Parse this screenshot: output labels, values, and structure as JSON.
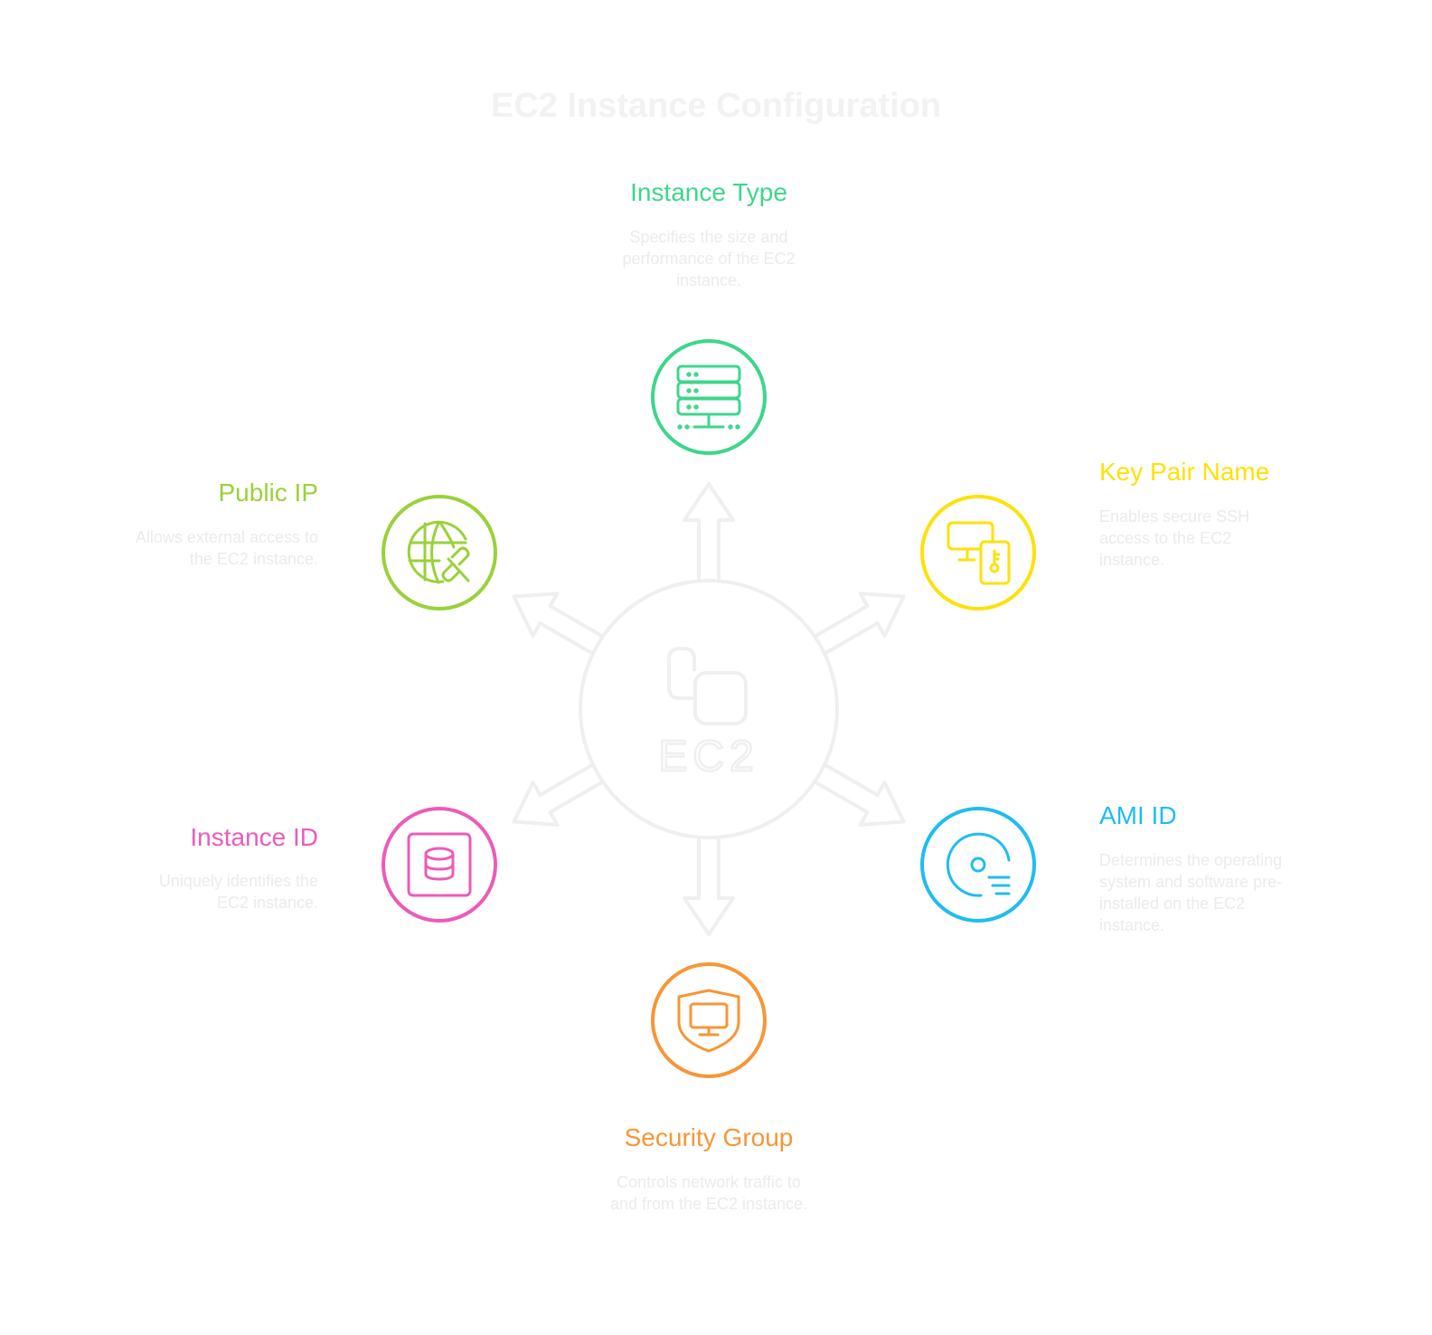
{
  "title": "EC2 Instance Configuration",
  "hub": {
    "label": "EC2"
  },
  "colors": {
    "instance_type": "#3dd68c",
    "key_pair": "#fde10a",
    "ami": "#1fbdf0",
    "security_group": "#f79637",
    "instance_id": "#ec5bb8",
    "public_ip": "#9ad13a",
    "hub": "#efefef",
    "description": "#ebebeb"
  },
  "nodes": {
    "instance_type": {
      "label": "Instance Type",
      "description": "Specifies the size and performance of the EC2 instance.",
      "icon": "server-rack-icon"
    },
    "key_pair": {
      "label": "Key Pair Name",
      "description": "Enables secure SSH access to the EC2 instance.",
      "icon": "device-key-icon"
    },
    "ami": {
      "label": "AMI ID",
      "description": "Determines the operating system and software pre-installed on the EC2 instance.",
      "icon": "disk-image-icon"
    },
    "security_group": {
      "label": "Security Group",
      "description": "Controls network traffic to and from the EC2 instance.",
      "icon": "shield-monitor-icon"
    },
    "instance_id": {
      "label": "Instance ID",
      "description": "Uniquely identifies the EC2 instance.",
      "icon": "database-icon"
    },
    "public_ip": {
      "label": "Public IP",
      "description": "Allows external access to the EC2 instance.",
      "icon": "globe-link-icon"
    }
  }
}
